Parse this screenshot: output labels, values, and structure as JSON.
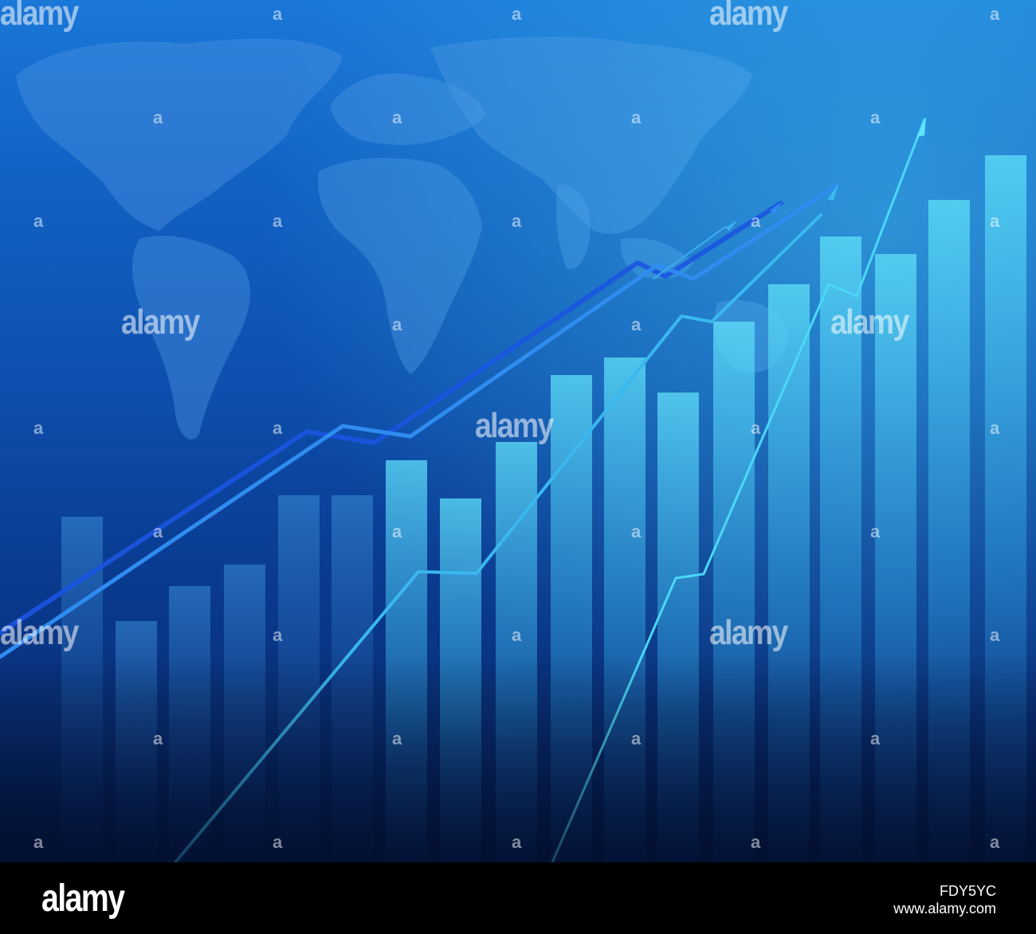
{
  "watermark": {
    "text": "alamy",
    "letter": "a"
  },
  "footer": {
    "logo": "alamy",
    "image_id": "FDY5YC",
    "site": "www.alamy.com"
  },
  "colors": {
    "background_top": "#1a78d8",
    "background_bottom": "#061f55",
    "bars": "#3fc6f0",
    "line_dark": "#1a55e0",
    "line_light": "#3ab8f0",
    "line_bright": "#4ad8f8"
  }
}
